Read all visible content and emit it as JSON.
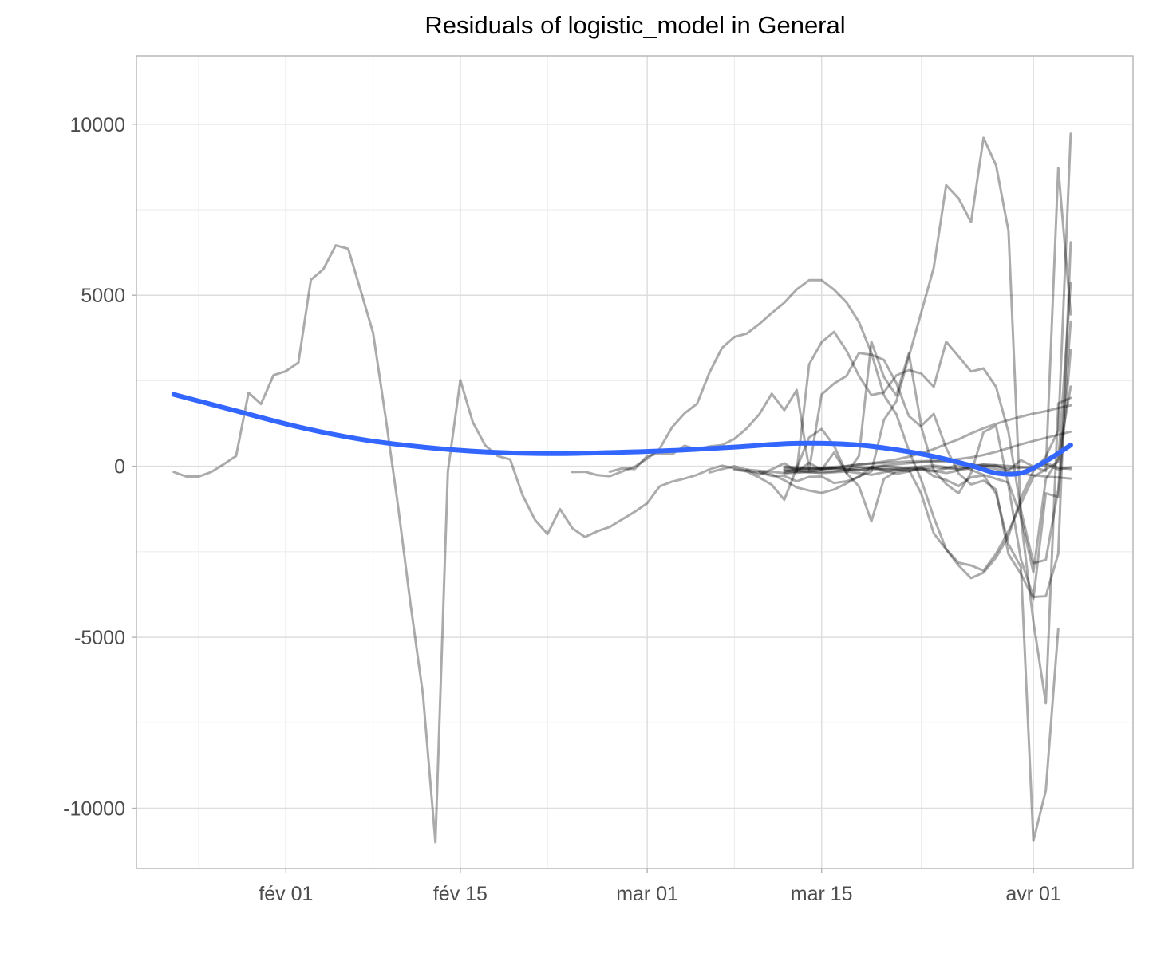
{
  "chart_data": {
    "type": "line",
    "title": "Residuals of logistic_model in General",
    "xlabel": "",
    "ylabel": "",
    "x_axis": {
      "type": "date",
      "range": [
        "2020-01-20",
        "2020-04-09"
      ],
      "ticks": [
        {
          "value": "2020-02-01",
          "label": "fév 01"
        },
        {
          "value": "2020-02-15",
          "label": "fév 15"
        },
        {
          "value": "2020-03-01",
          "label": "mar 01"
        },
        {
          "value": "2020-03-15",
          "label": "mar 15"
        },
        {
          "value": "2020-04-01",
          "label": "avr 01"
        }
      ],
      "minor_ticks": [
        "2020-01-25",
        "2020-02-08",
        "2020-02-22",
        "2020-03-08",
        "2020-03-23"
      ]
    },
    "y_axis": {
      "range": [
        -11760,
        12000
      ],
      "ticks": [
        {
          "value": 10000,
          "label": "10000"
        },
        {
          "value": 5000,
          "label": "5000"
        },
        {
          "value": 0,
          "label": "0"
        },
        {
          "value": -5000,
          "label": "-5000"
        },
        {
          "value": -10000,
          "label": "-10000"
        }
      ],
      "minor_ticks": [
        7500,
        2500,
        -2500,
        -7500
      ]
    },
    "grid": true,
    "legend": "none",
    "colors": {
      "series": "#000000",
      "series_opacity": 0.33,
      "smooth": "#3366ff",
      "grid": "#dedede",
      "panel_border": "#b3b3b3",
      "tick_label": "#4d4d4d",
      "title": "#000000"
    },
    "series": [
      {
        "x": [
          "2020-01-23",
          "2020-01-24",
          "2020-01-25",
          "2020-01-26",
          "2020-01-27",
          "2020-01-28",
          "2020-01-29",
          "2020-01-30",
          "2020-01-31",
          "2020-02-01",
          "2020-02-02",
          "2020-02-03",
          "2020-02-04",
          "2020-02-05",
          "2020-02-06",
          "2020-02-07",
          "2020-02-08",
          "2020-02-09",
          "2020-02-10",
          "2020-02-11",
          "2020-02-12",
          "2020-02-13",
          "2020-02-14",
          "2020-02-15",
          "2020-02-16",
          "2020-02-17",
          "2020-02-18",
          "2020-02-19",
          "2020-02-20",
          "2020-02-21",
          "2020-02-22",
          "2020-02-23",
          "2020-02-24",
          "2020-02-25",
          "2020-02-26",
          "2020-02-27",
          "2020-02-28",
          "2020-02-29",
          "2020-03-01",
          "2020-03-02",
          "2020-03-03",
          "2020-03-04",
          "2020-03-05",
          "2020-03-06",
          "2020-03-07",
          "2020-03-08",
          "2020-03-09",
          "2020-03-10",
          "2020-03-11",
          "2020-03-12",
          "2020-03-13",
          "2020-03-14",
          "2020-03-15",
          "2020-03-16",
          "2020-03-17",
          "2020-03-18",
          "2020-03-19",
          "2020-03-20",
          "2020-03-21",
          "2020-03-22",
          "2020-03-23",
          "2020-03-24",
          "2020-03-25",
          "2020-03-26",
          "2020-03-27",
          "2020-03-28",
          "2020-03-29",
          "2020-03-30",
          "2020-03-31",
          "2020-04-01",
          "2020-04-02",
          "2020-04-03"
        ],
        "y": [
          -170,
          -300,
          -300,
          -170,
          60,
          300,
          2150,
          1820,
          2660,
          2780,
          3030,
          5450,
          5760,
          6460,
          6360,
          5140,
          3900,
          1430,
          -1170,
          -4030,
          -6680,
          -10990,
          -150,
          2520,
          1290,
          610,
          300,
          200,
          -850,
          -1570,
          -1980,
          -1250,
          -1810,
          -2070,
          -1900,
          -1770,
          -1550,
          -1330,
          -1080,
          -590,
          -450,
          -360,
          -250,
          -90,
          20,
          -60,
          -140,
          -180,
          -280,
          -280,
          -440,
          -310,
          -300,
          -490,
          -440,
          -310,
          -20,
          -120,
          -220,
          -150,
          -30,
          -290,
          -400,
          -580,
          -320,
          -270,
          -800,
          -2280,
          -2950,
          -10950,
          -9480,
          -4750
        ]
      },
      {
        "x": [
          "2020-02-24",
          "2020-02-25",
          "2020-02-26",
          "2020-02-27",
          "2020-02-28",
          "2020-02-29",
          "2020-03-01",
          "2020-03-02",
          "2020-03-03",
          "2020-03-04",
          "2020-03-05",
          "2020-03-06",
          "2020-03-07",
          "2020-03-08",
          "2020-03-09",
          "2020-03-10",
          "2020-03-11",
          "2020-03-12",
          "2020-03-13",
          "2020-03-14",
          "2020-03-15",
          "2020-03-16",
          "2020-03-17",
          "2020-03-18",
          "2020-03-19",
          "2020-03-20",
          "2020-03-21",
          "2020-03-22",
          "2020-03-23",
          "2020-03-24",
          "2020-03-25",
          "2020-03-26",
          "2020-03-27",
          "2020-03-28",
          "2020-03-29",
          "2020-03-30",
          "2020-03-31",
          "2020-04-01",
          "2020-04-02",
          "2020-04-03",
          "2020-04-04"
        ],
        "y": [
          -170,
          -160,
          -260,
          -290,
          -150,
          -10,
          220,
          510,
          1140,
          1550,
          1830,
          2740,
          3460,
          3780,
          3880,
          4160,
          4480,
          4780,
          5170,
          5440,
          5440,
          5160,
          4790,
          4220,
          3310,
          2080,
          1520,
          460,
          -400,
          -1490,
          -2430,
          -2900,
          -3270,
          -3110,
          -2670,
          -2040,
          -920,
          -140,
          280,
          1050,
          9720
        ]
      },
      {
        "x": [
          "2020-02-27",
          "2020-02-28",
          "2020-02-29",
          "2020-03-01",
          "2020-03-02",
          "2020-03-03",
          "2020-03-04",
          "2020-03-05",
          "2020-03-06",
          "2020-03-07",
          "2020-03-08",
          "2020-03-09",
          "2020-03-10",
          "2020-03-11",
          "2020-03-12",
          "2020-03-13",
          "2020-03-14",
          "2020-03-15",
          "2020-03-16",
          "2020-03-17",
          "2020-03-18",
          "2020-03-19",
          "2020-03-20",
          "2020-03-21",
          "2020-03-22",
          "2020-03-23",
          "2020-03-24",
          "2020-03-25",
          "2020-03-26",
          "2020-03-27",
          "2020-03-28",
          "2020-03-29",
          "2020-03-30",
          "2020-03-31",
          "2020-04-01",
          "2020-04-02",
          "2020-04-03",
          "2020-04-04"
        ],
        "y": [
          -160,
          -60,
          -80,
          300,
          380,
          350,
          600,
          490,
          580,
          620,
          800,
          1110,
          1520,
          2120,
          1640,
          2230,
          -90,
          2100,
          2420,
          2640,
          3310,
          3260,
          3110,
          2430,
          1470,
          1150,
          -110,
          -520,
          -790,
          -200,
          1000,
          1180,
          -570,
          -2730,
          -3820,
          -3800,
          -2560,
          6550
        ]
      },
      {
        "x": [
          "2020-03-06",
          "2020-03-07",
          "2020-03-08",
          "2020-03-09",
          "2020-03-10",
          "2020-03-11",
          "2020-03-12",
          "2020-03-13",
          "2020-03-14",
          "2020-03-15",
          "2020-03-16",
          "2020-03-17",
          "2020-03-18",
          "2020-03-19",
          "2020-03-20",
          "2020-03-21",
          "2020-03-22",
          "2020-03-23",
          "2020-03-24",
          "2020-03-25",
          "2020-03-26",
          "2020-03-27",
          "2020-03-28",
          "2020-03-29",
          "2020-03-30",
          "2020-03-31",
          "2020-04-01",
          "2020-04-02",
          "2020-04-03",
          "2020-04-04"
        ],
        "y": [
          -180,
          -80,
          0,
          -100,
          -250,
          -90,
          90,
          -150,
          2980,
          3630,
          3930,
          3380,
          2640,
          2080,
          2160,
          2660,
          2810,
          2710,
          2320,
          3640,
          3210,
          2770,
          2860,
          2320,
          1000,
          -1280,
          -2830,
          -2740,
          -680,
          4230
        ]
      },
      {
        "x": [
          "2020-03-10",
          "2020-03-11",
          "2020-03-12",
          "2020-03-13",
          "2020-03-14",
          "2020-03-15",
          "2020-03-16",
          "2020-03-17",
          "2020-03-18",
          "2020-03-19",
          "2020-03-20",
          "2020-03-21",
          "2020-03-22",
          "2020-03-23",
          "2020-03-24",
          "2020-03-25",
          "2020-03-26",
          "2020-03-27",
          "2020-03-28",
          "2020-03-29",
          "2020-03-30",
          "2020-03-31",
          "2020-04-01",
          "2020-04-02",
          "2020-04-03",
          "2020-04-04"
        ],
        "y": [
          -160,
          -240,
          -410,
          -620,
          -710,
          -780,
          -680,
          -500,
          -300,
          -150,
          1350,
          1900,
          3200,
          4500,
          5800,
          8220,
          7830,
          7140,
          9600,
          8800,
          6880,
          -1520,
          -4540,
          -6930,
          1840,
          2000
        ]
      },
      {
        "x": [
          "2020-03-08",
          "2020-03-09",
          "2020-03-10",
          "2020-03-11",
          "2020-03-12",
          "2020-03-13",
          "2020-03-14",
          "2020-03-15",
          "2020-03-16",
          "2020-03-17",
          "2020-03-18",
          "2020-03-19",
          "2020-03-20",
          "2020-03-21",
          "2020-03-22",
          "2020-03-23",
          "2020-03-24",
          "2020-03-25",
          "2020-03-26",
          "2020-03-27",
          "2020-03-28",
          "2020-03-29",
          "2020-03-30",
          "2020-03-31",
          "2020-04-01",
          "2020-04-02",
          "2020-04-03",
          "2020-04-04"
        ],
        "y": [
          -100,
          -150,
          -330,
          -540,
          -980,
          -50,
          840,
          1090,
          600,
          -200,
          -590,
          -1610,
          -370,
          -150,
          -100,
          -800,
          -1960,
          -2430,
          -2820,
          -2900,
          -3050,
          -2560,
          -1900,
          -1090,
          -310,
          -90,
          130,
          5360
        ]
      },
      {
        "x": [
          "2020-03-12",
          "2020-03-13",
          "2020-03-14",
          "2020-03-15",
          "2020-03-16",
          "2020-03-17",
          "2020-03-18",
          "2020-03-19",
          "2020-03-20",
          "2020-03-21",
          "2020-03-22",
          "2020-03-23",
          "2020-03-24",
          "2020-03-25",
          "2020-03-26",
          "2020-03-27",
          "2020-03-28",
          "2020-03-29",
          "2020-03-30",
          "2020-03-31",
          "2020-04-01",
          "2020-04-02",
          "2020-04-03",
          "2020-04-04"
        ],
        "y": [
          -200,
          -150,
          100,
          -100,
          400,
          -200,
          300,
          3640,
          2610,
          2070,
          3300,
          1180,
          1530,
          530,
          -210,
          -530,
          -420,
          -680,
          -2570,
          -3150,
          -3880,
          -790,
          -900,
          3400
        ]
      },
      {
        "x": [
          "2020-03-12",
          "2020-03-13",
          "2020-03-14",
          "2020-03-15",
          "2020-03-16",
          "2020-03-17",
          "2020-03-18",
          "2020-03-19",
          "2020-03-20",
          "2020-03-21",
          "2020-03-22",
          "2020-03-23",
          "2020-03-24",
          "2020-03-25",
          "2020-03-26",
          "2020-03-27",
          "2020-03-28",
          "2020-03-29",
          "2020-03-30",
          "2020-03-31",
          "2020-04-01",
          "2020-04-02",
          "2020-04-03",
          "2020-04-04"
        ],
        "y": [
          -150,
          -80,
          -60,
          -40,
          -20,
          10,
          50,
          90,
          140,
          200,
          280,
          380,
          500,
          650,
          790,
          960,
          1110,
          1240,
          1350,
          1450,
          1540,
          1610,
          1700,
          1780
        ]
      },
      {
        "x": [
          "2020-03-12",
          "2020-03-13",
          "2020-03-14",
          "2020-03-15",
          "2020-03-16",
          "2020-03-17",
          "2020-03-18",
          "2020-03-19",
          "2020-03-20",
          "2020-03-21",
          "2020-03-22",
          "2020-03-23",
          "2020-03-24",
          "2020-03-25",
          "2020-03-26",
          "2020-03-27",
          "2020-03-28",
          "2020-03-29",
          "2020-03-30",
          "2020-03-31",
          "2020-04-01",
          "2020-04-02",
          "2020-04-03",
          "2020-04-04"
        ],
        "y": [
          -120,
          -160,
          -180,
          -170,
          -150,
          -110,
          -60,
          -20,
          20,
          60,
          90,
          120,
          140,
          170,
          210,
          260,
          330,
          420,
          530,
          640,
          740,
          830,
          920,
          1010
        ]
      },
      {
        "x": [
          "2020-03-09",
          "2020-03-10",
          "2020-03-11",
          "2020-03-12",
          "2020-03-13",
          "2020-03-14",
          "2020-03-15",
          "2020-03-16",
          "2020-03-17",
          "2020-03-18",
          "2020-03-19",
          "2020-03-20",
          "2020-03-21",
          "2020-03-22",
          "2020-03-23",
          "2020-03-24",
          "2020-03-25",
          "2020-03-26",
          "2020-03-27",
          "2020-03-28",
          "2020-03-29",
          "2020-03-30",
          "2020-03-31",
          "2020-04-01",
          "2020-04-02",
          "2020-04-03",
          "2020-04-04"
        ],
        "y": [
          -100,
          -130,
          -160,
          -200,
          -190,
          -150,
          -100,
          -50,
          0,
          50,
          80,
          100,
          120,
          140,
          150,
          160,
          140,
          110,
          60,
          0,
          -80,
          -150,
          -220,
          -260,
          -300,
          -330,
          -360
        ]
      },
      {
        "x": [
          "2020-03-12",
          "2020-03-14",
          "2020-03-16",
          "2020-03-18",
          "2020-03-20",
          "2020-03-22",
          "2020-03-24",
          "2020-03-26",
          "2020-03-28",
          "2020-03-30",
          "2020-03-31",
          "2020-04-01",
          "2020-04-02",
          "2020-04-03",
          "2020-04-04"
        ],
        "y": [
          -30,
          -80,
          -40,
          -120,
          10,
          -60,
          -150,
          40,
          -250,
          -480,
          -1480,
          -3100,
          -380,
          210,
          2330
        ]
      },
      {
        "x": [
          "2020-03-13",
          "2020-03-15",
          "2020-03-17",
          "2020-03-19",
          "2020-03-21",
          "2020-03-23",
          "2020-03-25",
          "2020-03-27",
          "2020-03-29",
          "2020-03-30",
          "2020-03-31",
          "2020-04-01",
          "2020-04-02",
          "2020-04-03",
          "2020-04-04"
        ],
        "y": [
          -120,
          -200,
          -150,
          -250,
          -100,
          -60,
          -200,
          -50,
          30,
          -120,
          180,
          -10,
          -140,
          8720,
          4440
        ]
      },
      {
        "x": [
          "2020-03-12",
          "2020-03-14",
          "2020-03-16",
          "2020-03-18",
          "2020-03-20",
          "2020-03-22",
          "2020-03-24",
          "2020-03-26",
          "2020-03-28",
          "2020-03-30",
          "2020-04-01",
          "2020-04-02",
          "2020-04-03",
          "2020-04-04"
        ],
        "y": [
          -10,
          -50,
          -80,
          -120,
          -70,
          -140,
          -30,
          -90,
          40,
          -60,
          -20,
          90,
          -40,
          -80
        ]
      },
      {
        "x": [
          "2020-03-12",
          "2020-03-14",
          "2020-03-16",
          "2020-03-18",
          "2020-03-20",
          "2020-03-22",
          "2020-03-24",
          "2020-03-26",
          "2020-03-28",
          "2020-03-30",
          "2020-04-01",
          "2020-04-02",
          "2020-04-03",
          "2020-04-04"
        ],
        "y": [
          -80,
          -110,
          -60,
          -20,
          -90,
          -40,
          20,
          -70,
          60,
          10,
          -50,
          40,
          -90,
          -30
        ]
      }
    ],
    "smooth": {
      "name": "",
      "x": [
        "2020-01-23",
        "2020-01-28",
        "2020-02-02",
        "2020-02-07",
        "2020-02-12",
        "2020-02-17",
        "2020-02-22",
        "2020-02-27",
        "2020-03-03",
        "2020-03-08",
        "2020-03-13",
        "2020-03-18",
        "2020-03-23",
        "2020-03-27",
        "2020-03-29",
        "2020-03-31",
        "2020-04-02",
        "2020-04-04"
      ],
      "y": [
        2100,
        1620,
        1150,
        790,
        560,
        420,
        370,
        400,
        460,
        560,
        670,
        620,
        360,
        20,
        -200,
        -200,
        150,
        620
      ]
    }
  }
}
